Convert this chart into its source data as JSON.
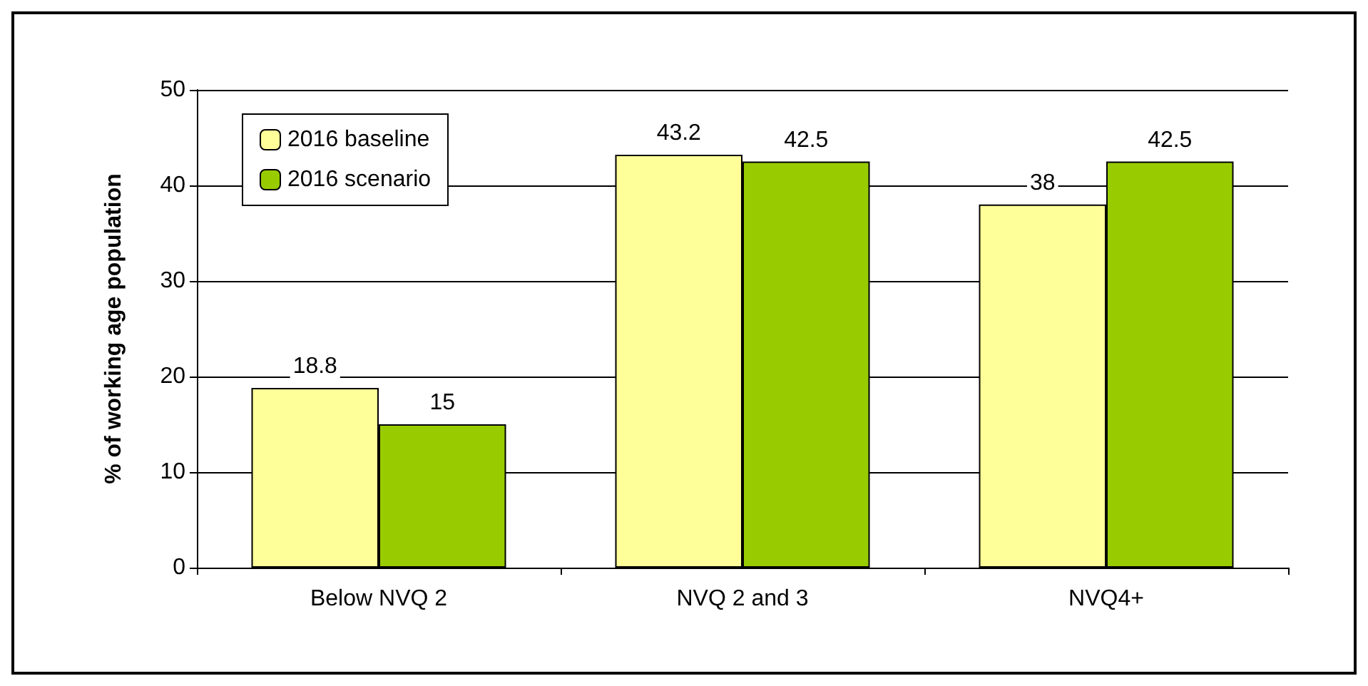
{
  "chart_data": {
    "type": "bar",
    "ylabel": "% of working age population",
    "categories": [
      "Below NVQ 2",
      "NVQ 2 and 3",
      "NVQ4+"
    ],
    "series": [
      {
        "name": "2016 baseline",
        "color": "#ffff99",
        "values": [
          18.8,
          43.2,
          38
        ]
      },
      {
        "name": "2016 scenario",
        "color": "#99cc00",
        "values": [
          15,
          42.5,
          42.5
        ]
      }
    ],
    "ylim": [
      0,
      50
    ],
    "yticks": [
      0,
      10,
      20,
      30,
      40,
      50
    ],
    "grid": "y",
    "legend": "top left",
    "data_labels": true
  }
}
